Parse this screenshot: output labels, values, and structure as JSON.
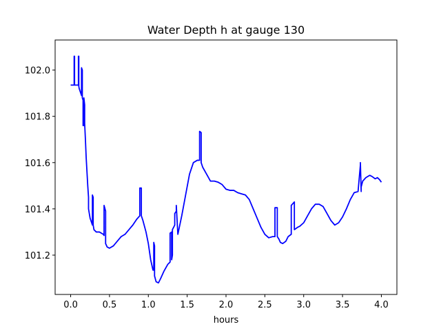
{
  "chart_data": {
    "type": "line",
    "title": "Water Depth h at gauge 130",
    "xlabel": "hours",
    "ylabel": "",
    "xlim": [
      -0.2,
      4.2
    ],
    "ylim": [
      101.03,
      102.13
    ],
    "xticks": [
      0.0,
      0.5,
      1.0,
      1.5,
      2.0,
      2.5,
      3.0,
      3.5,
      4.0
    ],
    "xtick_labels": [
      "0.0",
      "0.5",
      "1.0",
      "1.5",
      "2.0",
      "2.5",
      "3.0",
      "3.5",
      "4.0"
    ],
    "yticks": [
      101.2,
      101.4,
      101.6,
      101.8,
      102.0
    ],
    "ytick_labels": [
      "101.2",
      "101.4",
      "101.6",
      "101.8",
      "102.0"
    ],
    "grid": false,
    "legend": false,
    "series": [
      {
        "color": "#0000ff",
        "x": [
          0.0,
          0.04,
          0.045,
          0.045,
          0.05,
          0.05,
          0.1,
          0.1,
          0.105,
          0.105,
          0.11,
          0.12,
          0.14,
          0.14,
          0.15,
          0.15,
          0.16,
          0.16,
          0.17,
          0.17,
          0.18,
          0.18,
          0.19,
          0.2,
          0.22,
          0.23,
          0.23,
          0.25,
          0.27,
          0.28,
          0.28,
          0.29,
          0.29,
          0.3,
          0.33,
          0.37,
          0.42,
          0.43,
          0.43,
          0.45,
          0.45,
          0.47,
          0.5,
          0.55,
          0.6,
          0.65,
          0.7,
          0.75,
          0.8,
          0.85,
          0.89,
          0.89,
          0.91,
          0.91,
          0.93,
          0.97,
          1.0,
          1.03,
          1.06,
          1.07,
          1.07,
          1.08,
          1.08,
          1.1,
          1.13,
          1.16,
          1.2,
          1.25,
          1.28,
          1.28,
          1.3,
          1.3,
          1.31,
          1.31,
          1.34,
          1.34,
          1.36,
          1.36,
          1.38,
          1.43,
          1.48,
          1.53,
          1.58,
          1.63,
          1.66,
          1.66,
          1.68,
          1.68,
          1.7,
          1.75,
          1.8,
          1.85,
          1.9,
          1.95,
          2.0,
          2.05,
          2.1,
          2.15,
          2.2,
          2.25,
          2.3,
          2.35,
          2.4,
          2.45,
          2.5,
          2.55,
          2.6,
          2.63,
          2.63,
          2.66,
          2.66,
          2.68,
          2.7,
          2.73,
          2.77,
          2.8,
          2.84,
          2.84,
          2.88,
          2.88,
          2.92,
          2.95,
          3.0,
          3.05,
          3.1,
          3.15,
          3.2,
          3.25,
          3.3,
          3.35,
          3.4,
          3.45,
          3.5,
          3.55,
          3.6,
          3.65,
          3.7,
          3.73,
          3.73,
          3.74,
          3.74,
          3.76,
          3.8,
          3.85,
          3.88,
          3.92,
          3.95,
          3.98,
          4.0
        ],
        "y": [
          101.935,
          101.935,
          101.935,
          102.06,
          102.06,
          101.935,
          101.935,
          102.06,
          102.06,
          101.93,
          101.92,
          101.91,
          101.89,
          102.01,
          102.0,
          101.88,
          101.87,
          101.76,
          101.76,
          101.88,
          101.85,
          101.77,
          101.7,
          101.62,
          101.5,
          101.45,
          101.4,
          101.36,
          101.34,
          101.33,
          101.46,
          101.45,
          101.33,
          101.31,
          101.3,
          101.3,
          101.29,
          101.285,
          101.415,
          101.39,
          101.25,
          101.235,
          101.23,
          101.24,
          101.26,
          101.28,
          101.29,
          101.31,
          101.33,
          101.355,
          101.37,
          101.49,
          101.49,
          101.37,
          101.35,
          101.3,
          101.25,
          101.18,
          101.135,
          101.135,
          101.255,
          101.24,
          101.11,
          101.085,
          101.08,
          101.1,
          101.13,
          101.16,
          101.17,
          101.295,
          101.3,
          101.18,
          101.2,
          101.31,
          101.33,
          101.38,
          101.39,
          101.415,
          101.29,
          101.37,
          101.46,
          101.55,
          101.6,
          101.61,
          101.61,
          101.735,
          101.73,
          101.6,
          101.58,
          101.55,
          101.52,
          101.52,
          101.515,
          101.505,
          101.485,
          101.48,
          101.48,
          101.47,
          101.465,
          101.46,
          101.44,
          101.4,
          101.36,
          101.32,
          101.29,
          101.275,
          101.28,
          101.28,
          101.405,
          101.405,
          101.28,
          101.27,
          101.255,
          101.25,
          101.26,
          101.28,
          101.29,
          101.415,
          101.43,
          101.31,
          101.32,
          101.325,
          101.34,
          101.37,
          101.4,
          101.42,
          101.42,
          101.41,
          101.38,
          101.35,
          101.33,
          101.34,
          101.365,
          101.4,
          101.44,
          101.47,
          101.475,
          101.59,
          101.6,
          101.475,
          101.495,
          101.52,
          101.535,
          101.545,
          101.54,
          101.53,
          101.535,
          101.525,
          101.515
        ]
      }
    ]
  }
}
